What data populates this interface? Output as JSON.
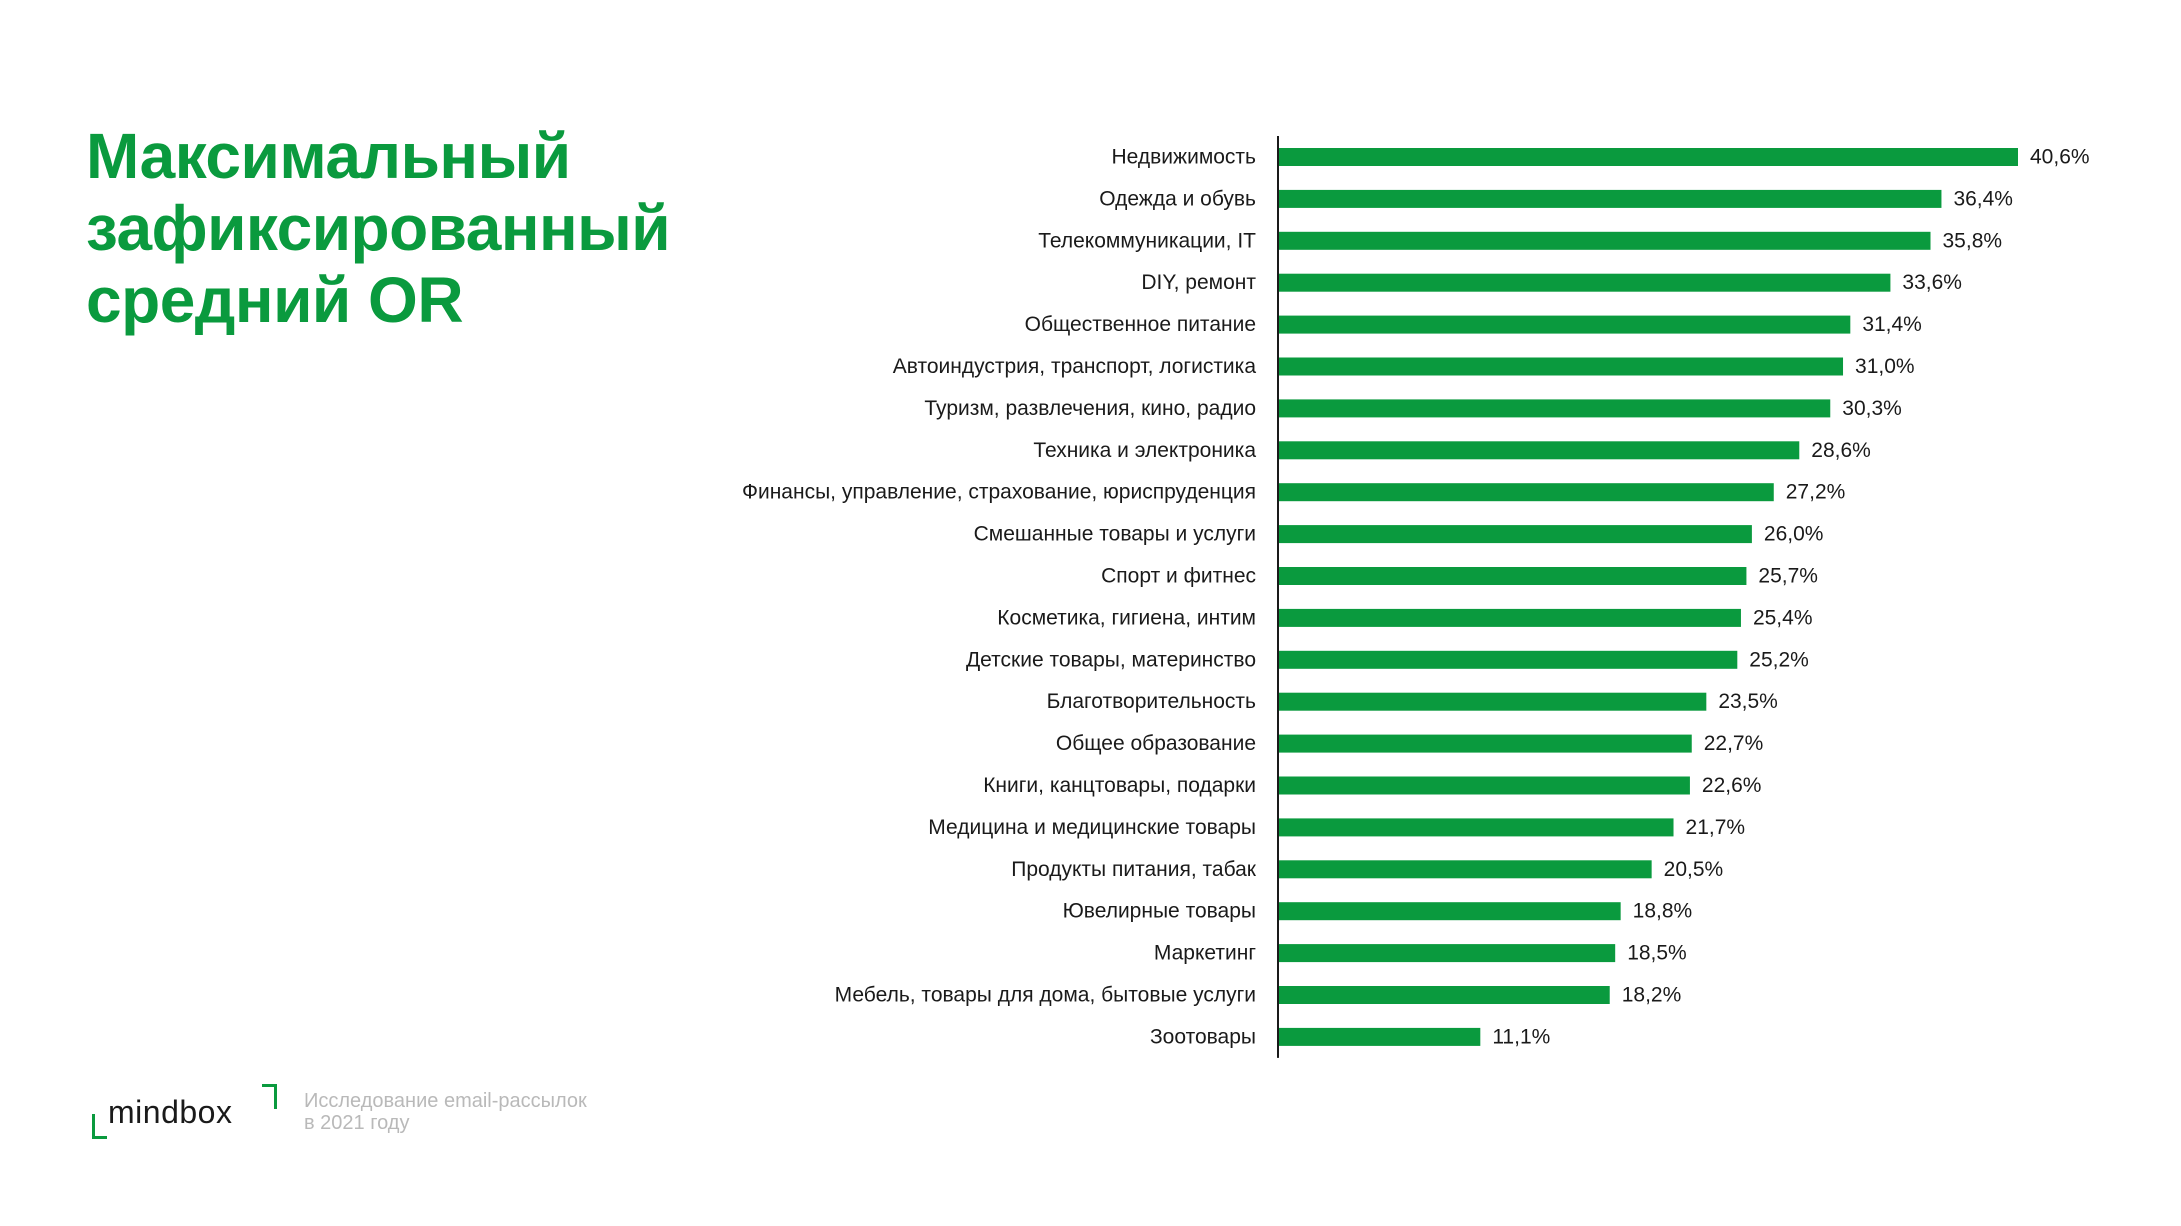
{
  "title_lines": [
    "Максимальный",
    "зафиксированный",
    "средний OR"
  ],
  "footer": {
    "logo_text": "mindbox",
    "caption_lines": [
      "Исследование email-рассылок",
      "в 2021 году"
    ]
  },
  "colors": {
    "accent": "#0a9a3e",
    "bar": "#0a9a3e",
    "caption": "#b9b9b9",
    "text": "#1a1a1a"
  },
  "chart_data": {
    "type": "bar",
    "orientation": "horizontal",
    "title": "",
    "xlabel": "",
    "ylabel": "",
    "categories": [
      "Недвижимость",
      "Одежда и обувь",
      "Телекоммуникации, IT",
      "DIY, ремонт",
      "Общественное питание",
      "Автоиндустрия, транспорт, логистика",
      "Туризм, развлечения, кино, радио",
      "Техника и электроника",
      "Финансы, управление, страхование, юриспруденция",
      "Смешанные товары и услуги",
      "Спорт и фитнес",
      "Косметика, гигиена, интим",
      "Детские товары, материнство",
      "Благотворительность",
      "Общее образование",
      "Книги, канцтовары, подарки",
      "Медицина и медицинские товары",
      "Продукты питания, табак",
      "Ювелирные товары",
      "Маркетинг",
      "Мебель, товары для дома, бытовые услуги",
      "Зоотовары"
    ],
    "values": [
      40.6,
      36.4,
      35.8,
      33.6,
      31.4,
      31.0,
      30.3,
      28.6,
      27.2,
      26.0,
      25.7,
      25.4,
      25.2,
      23.5,
      22.7,
      22.6,
      21.7,
      20.5,
      18.8,
      18.5,
      18.2,
      11.1
    ],
    "value_labels": [
      "40,6%",
      "36,4%",
      "35,8%",
      "33,6%",
      "31,4%",
      "31,0%",
      "30,3%",
      "28,6%",
      "27,2%",
      "26,0%",
      "25,7%",
      "25,4%",
      "25,2%",
      "23,5%",
      "22,7%",
      "22,6%",
      "21,7%",
      "20,5%",
      "18,8%",
      "18,5%",
      "18,2%",
      "11,1%"
    ],
    "xlim": [
      0,
      40.6
    ],
    "grid": false,
    "legend": "none"
  }
}
